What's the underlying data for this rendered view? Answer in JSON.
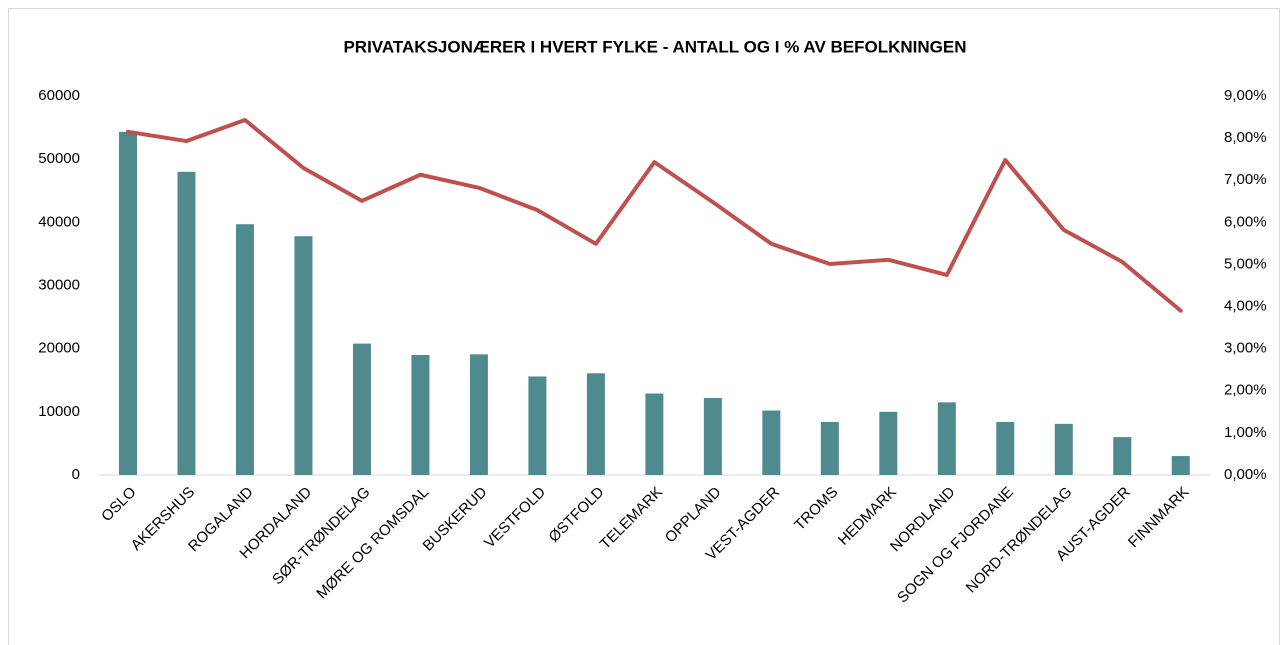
{
  "chart_data": {
    "type": "bar_line",
    "title": "PRIVATAKSJONÆRER I HVERT FYLKE - ANTALL OG I % AV BEFOLKNINGEN",
    "categories": [
      "OSLO",
      "AKERSHUS",
      "ROGALAND",
      "HORDALAND",
      "SØR-TRØNDELAG",
      "MØRE OG ROMSDAL",
      "BUSKERUD",
      "VESTFOLD",
      "ØSTFOLD",
      "TELEMARK",
      "OPPLAND",
      "VEST-AGDER",
      "TROMS",
      "HEDMARK",
      "NORDLAND",
      "SOGN OG FJORDANE",
      "NORD-TRØNDELAG",
      "AUST-AGDER",
      "FINNMARK"
    ],
    "series": [
      {
        "type": "bar",
        "color": "#4f8a8f",
        "values": [
          54300,
          48000,
          39700,
          37800,
          20800,
          19000,
          19100,
          15600,
          16100,
          12900,
          12200,
          10200,
          8400,
          10000,
          11500,
          8400,
          8100,
          6000,
          3000
        ]
      },
      {
        "type": "line",
        "axis": "y2",
        "color": "#c0504d",
        "values": [
          8.15,
          7.93,
          8.43,
          7.29,
          6.51,
          7.13,
          6.82,
          6.29,
          5.49,
          7.43,
          6.48,
          5.49,
          5.01,
          5.11,
          4.75,
          7.48,
          5.82,
          5.06,
          3.9
        ]
      }
    ],
    "ylim": [
      0,
      60000
    ],
    "yticks": [
      0,
      10000,
      20000,
      30000,
      40000,
      50000,
      60000
    ],
    "y2lim": [
      0,
      9
    ],
    "y2ticks": [
      {
        "value": 0,
        "label": "0,00%"
      },
      {
        "value": 1,
        "label": "1,00%"
      },
      {
        "value": 2,
        "label": "2,00%"
      },
      {
        "value": 3,
        "label": "3,00%"
      },
      {
        "value": 4,
        "label": "4,00%"
      },
      {
        "value": 5,
        "label": "5,00%"
      },
      {
        "value": 6,
        "label": "6,00%"
      },
      {
        "value": 7,
        "label": "7,00%"
      },
      {
        "value": 8,
        "label": "8,00%"
      },
      {
        "value": 9,
        "label": "9,00%"
      }
    ],
    "grid": false
  }
}
